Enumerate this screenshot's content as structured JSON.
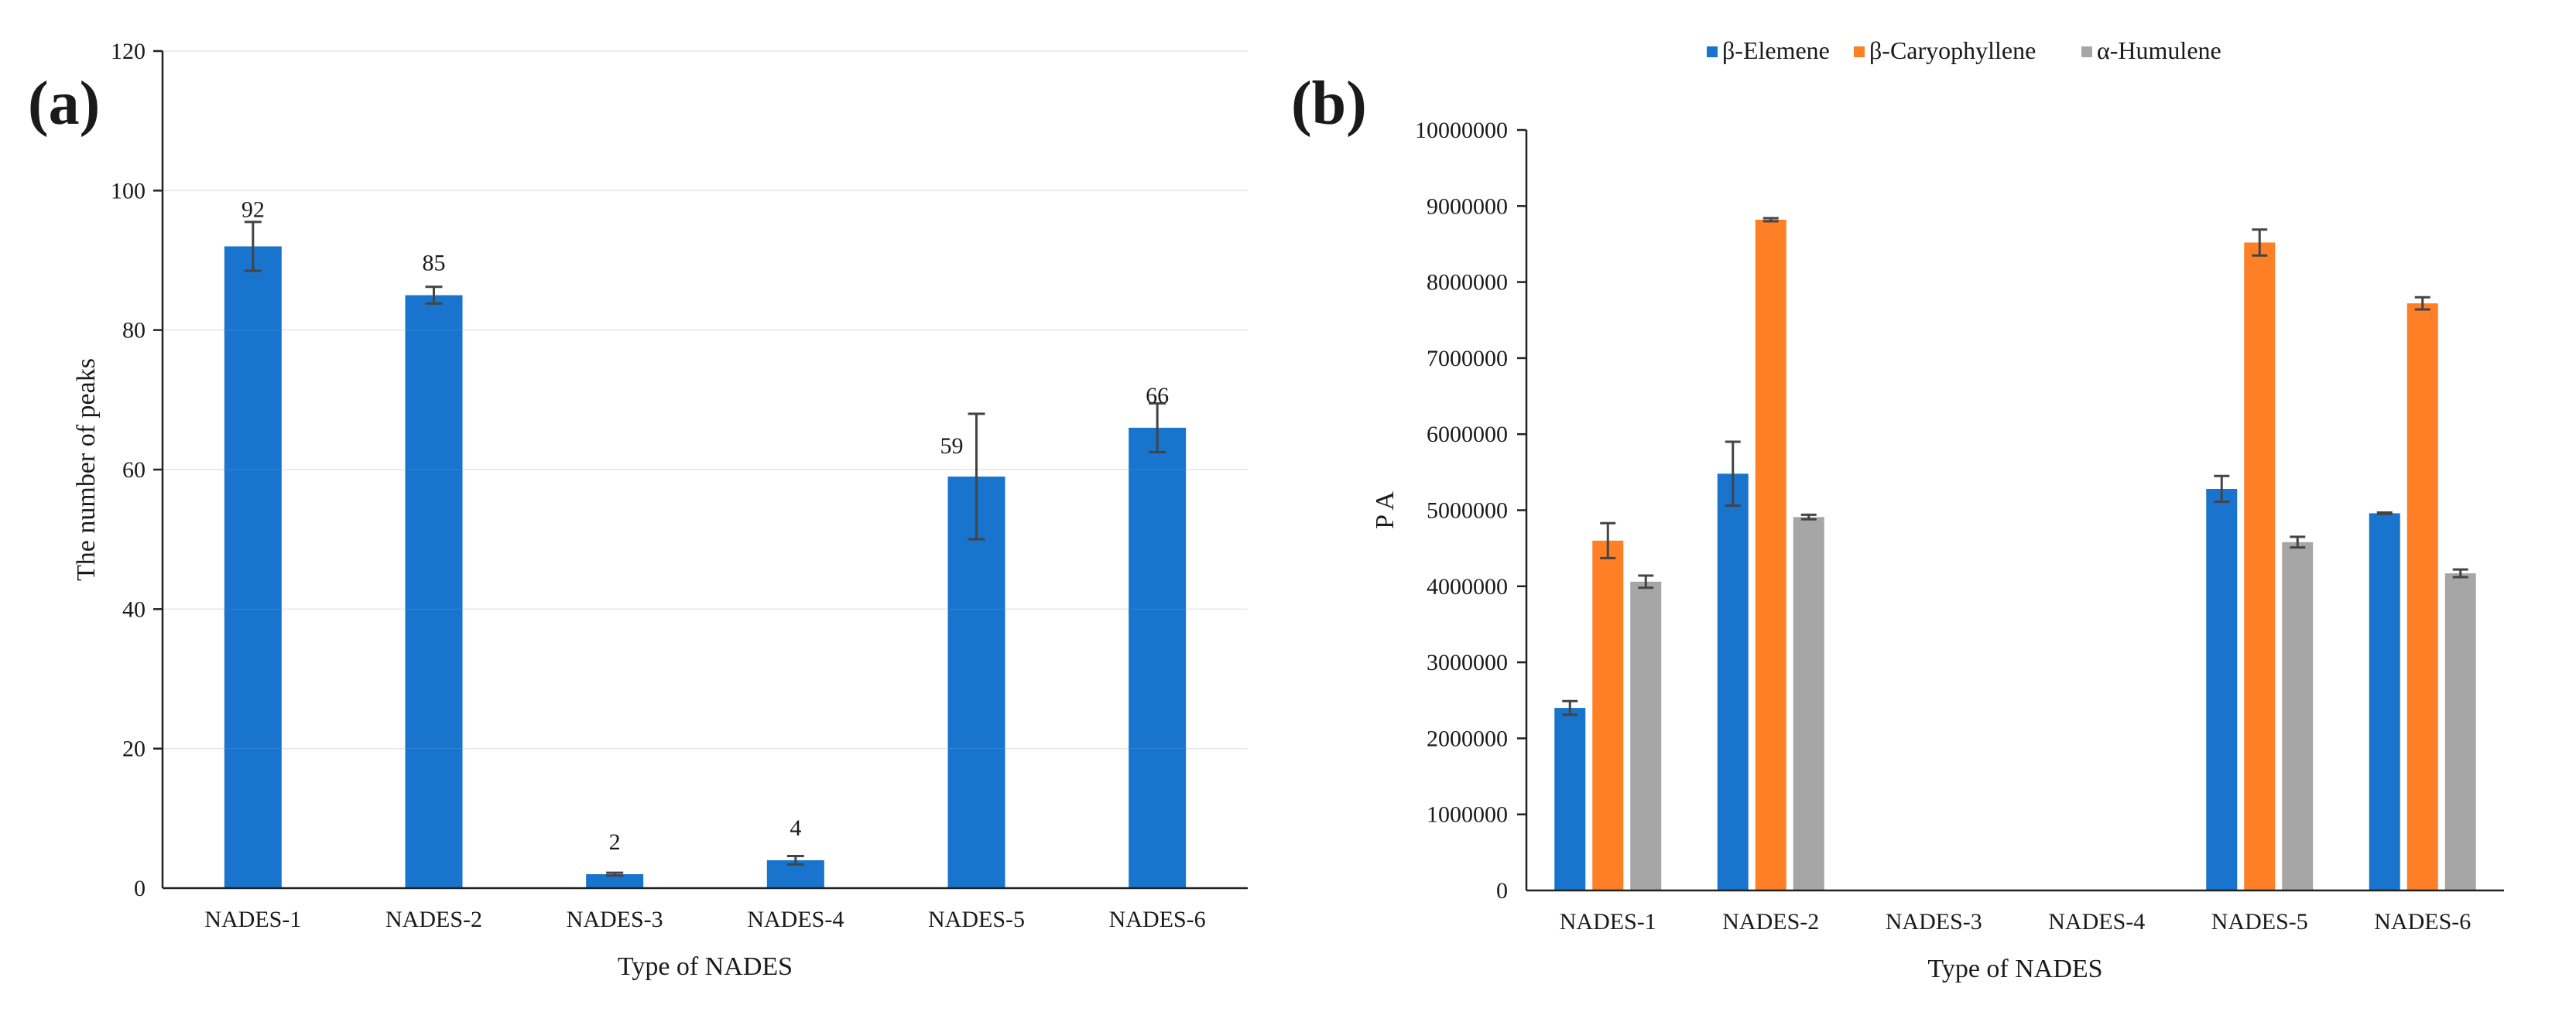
{
  "chart_data": [
    {
      "type": "bar",
      "panel_label": "(a)",
      "title": "",
      "xlabel": "Type of NADES",
      "ylabel": "The number of peaks",
      "ylim": [
        0,
        120
      ],
      "yticks": [
        0,
        20,
        40,
        60,
        80,
        100,
        120
      ],
      "categories": [
        "NADES-1",
        "NADES-2",
        "NADES-3",
        "NADES-4",
        "NADES-5",
        "NADES-6"
      ],
      "series": [
        {
          "name": "Number of peaks",
          "color": "#1874cd",
          "values": [
            92,
            85,
            2,
            4,
            59,
            66
          ],
          "errors": [
            3.5,
            1.2,
            0.2,
            0.6,
            9,
            3.5
          ],
          "labels": [
            "92",
            "85",
            "2",
            "4",
            "59",
            "66"
          ]
        }
      ]
    },
    {
      "type": "bar",
      "panel_label": "(b)",
      "title": "",
      "xlabel": "Type of NADES",
      "ylabel": "P A",
      "ylim": [
        0,
        10000000
      ],
      "yticks": [
        0,
        1000000,
        2000000,
        3000000,
        4000000,
        5000000,
        6000000,
        7000000,
        8000000,
        9000000,
        10000000
      ],
      "legend_position": "top-center",
      "categories": [
        "NADES-1",
        "NADES-2",
        "NADES-3",
        "NADES-4",
        "NADES-5",
        "NADES-6"
      ],
      "series": [
        {
          "name": "β-Elemene",
          "color": "#1874cd",
          "values": [
            2400000,
            5480000,
            0,
            0,
            5280000,
            4960000
          ],
          "errors": [
            90000,
            420000,
            0,
            0,
            170000,
            10000
          ]
        },
        {
          "name": "β-Caryophyllene",
          "color": "#ff7f27",
          "values": [
            4600000,
            8820000,
            0,
            0,
            8520000,
            7720000
          ],
          "errors": [
            230000,
            20000,
            0,
            0,
            170000,
            80000
          ]
        },
        {
          "name": "α-Humulene",
          "color": "#a6a6a6",
          "values": [
            4060000,
            4910000,
            0,
            0,
            4580000,
            4170000
          ],
          "errors": [
            80000,
            30000,
            0,
            0,
            70000,
            50000
          ]
        }
      ]
    }
  ]
}
